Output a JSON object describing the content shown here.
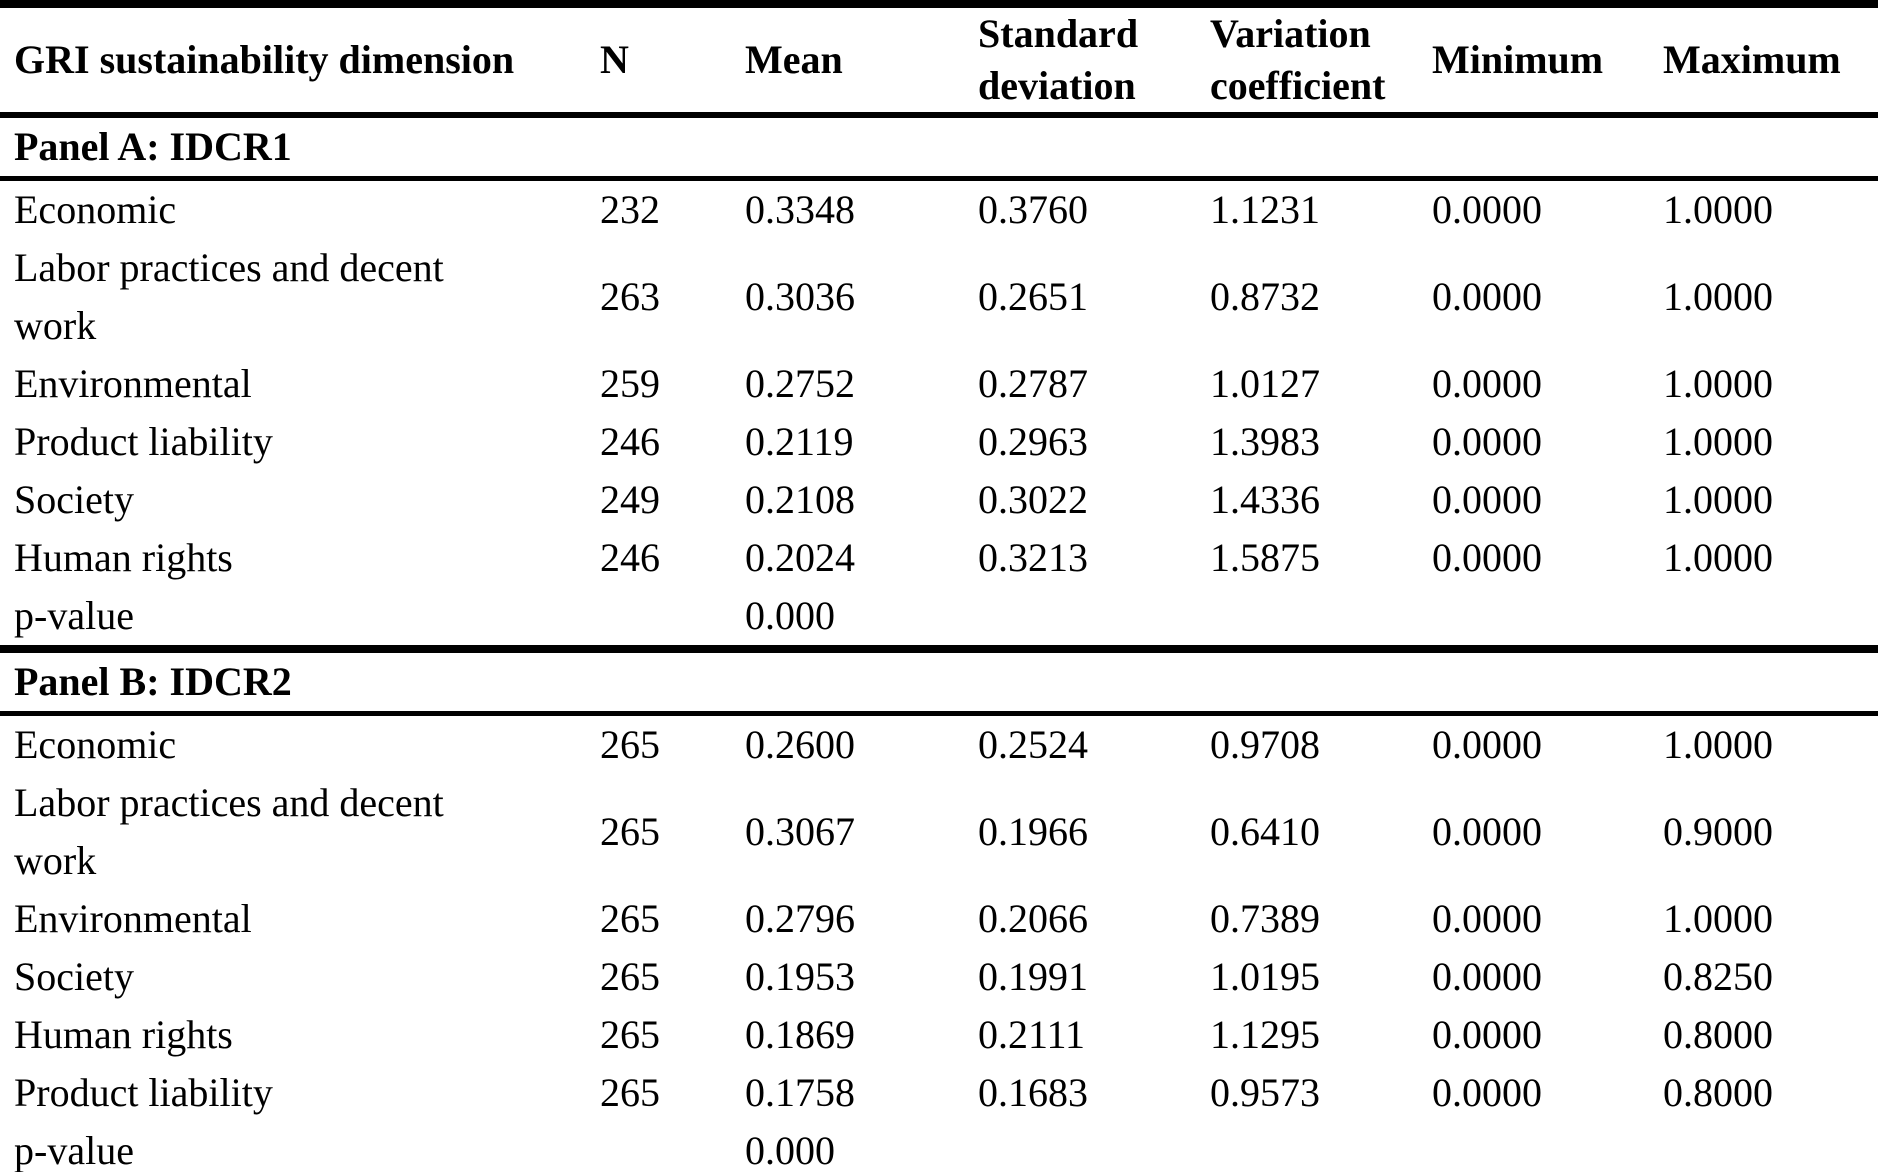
{
  "table": {
    "columns": [
      "GRI sustainability dimension",
      "N",
      "Mean",
      "Standard deviation",
      "Variation coefficient",
      "Minimum",
      "Maximum"
    ],
    "panel_a": {
      "label": "Panel A: IDCR1",
      "rows": [
        {
          "dimension": "Economic",
          "n": "232",
          "mean": "0.3348",
          "sd": "0.3760",
          "vc": "1.1231",
          "min": "0.0000",
          "max": "1.0000"
        },
        {
          "dimension": "Labor practices and decent\nwork",
          "n": "263",
          "mean": "0.3036",
          "sd": "0.2651",
          "vc": "0.8732",
          "min": "0.0000",
          "max": "1.0000"
        },
        {
          "dimension": "Environmental",
          "n": "259",
          "mean": "0.2752",
          "sd": "0.2787",
          "vc": "1.0127",
          "min": "0.0000",
          "max": "1.0000"
        },
        {
          "dimension": "Product liability",
          "n": "246",
          "mean": "0.2119",
          "sd": "0.2963",
          "vc": "1.3983",
          "min": "0.0000",
          "max": "1.0000"
        },
        {
          "dimension": "Society",
          "n": "249",
          "mean": "0.2108",
          "sd": "0.3022",
          "vc": "1.4336",
          "min": "0.0000",
          "max": "1.0000"
        },
        {
          "dimension": "Human rights",
          "n": "246",
          "mean": "0.2024",
          "sd": "0.3213",
          "vc": "1.5875",
          "min": "0.0000",
          "max": "1.0000"
        }
      ],
      "p_value": {
        "label": "p-value",
        "mean": "0.000"
      }
    },
    "panel_b": {
      "label": "Panel B: IDCR2",
      "rows": [
        {
          "dimension": "Economic",
          "n": "265",
          "mean": "0.2600",
          "sd": "0.2524",
          "vc": "0.9708",
          "min": "0.0000",
          "max": "1.0000"
        },
        {
          "dimension": "Labor practices and decent\nwork",
          "n": "265",
          "mean": "0.3067",
          "sd": "0.1966",
          "vc": "0.6410",
          "min": "0.0000",
          "max": "0.9000"
        },
        {
          "dimension": "Environmental",
          "n": "265",
          "mean": "0.2796",
          "sd": "0.2066",
          "vc": "0.7389",
          "min": "0.0000",
          "max": "1.0000"
        },
        {
          "dimension": "Society",
          "n": "265",
          "mean": "0.1953",
          "sd": "0.1991",
          "vc": "1.0195",
          "min": "0.0000",
          "max": "0.8250"
        },
        {
          "dimension": "Human rights",
          "n": "265",
          "mean": "0.1869",
          "sd": "0.2111",
          "vc": "1.1295",
          "min": "0.0000",
          "max": "0.8000"
        },
        {
          "dimension": "Product liability",
          "n": "265",
          "mean": "0.1758",
          "sd": "0.1683",
          "vc": "0.9573",
          "min": "0.0000",
          "max": "0.8000"
        }
      ],
      "p_value": {
        "label": "p-value",
        "mean": "0.000"
      }
    }
  }
}
